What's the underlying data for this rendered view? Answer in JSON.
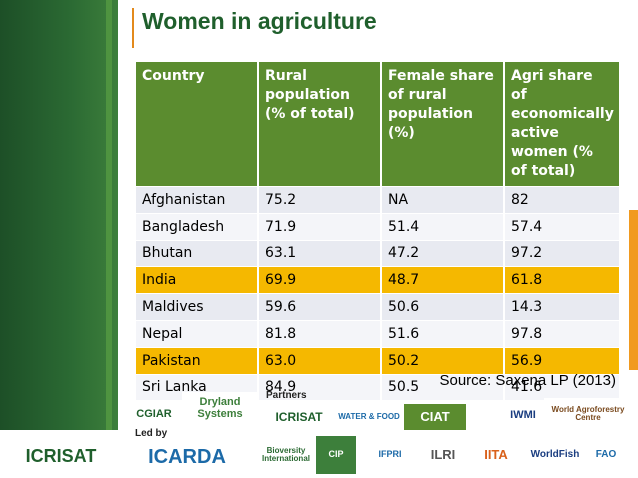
{
  "title": "Women in agriculture",
  "table": {
    "header": [
      "Country",
      "Rural population (% of total)",
      "Female share of rural population (%)",
      "Agri share of economically active women (% of total)"
    ],
    "rows": [
      [
        "Afghanistan",
        "75.2",
        "NA",
        "82"
      ],
      [
        "Bangladesh",
        "71.9",
        "51.4",
        "57.4"
      ],
      [
        "Bhutan",
        "63.1",
        "47.2",
        "97.2"
      ],
      [
        "India",
        "69.9",
        "48.7",
        "61.8"
      ],
      [
        "Maldives",
        "59.6",
        "50.6",
        "14.3"
      ],
      [
        "Nepal",
        "81.8",
        "51.6",
        "97.8"
      ],
      [
        "Pakistan",
        "63.0",
        "50.2",
        "56.9"
      ],
      [
        "Sri Lanka",
        "84.9",
        "50.5",
        "41.6"
      ]
    ],
    "highlight_rows": [
      3,
      6
    ]
  },
  "source": "Source: Saxena LP (2013)",
  "footer": {
    "partners_label": "Partners",
    "led_by_label": "Led by",
    "logos": [
      "CGIAR",
      "Dryland Systems",
      "ICRISAT",
      "ICARDA",
      "ICRISAT",
      "WATER & FOOD",
      "CIAT",
      "IWMI",
      "World Agroforestry Centre",
      "Bioversity International",
      "CIP",
      "IFPRI",
      "ILRI",
      "IITA",
      "WorldFish",
      "FAO"
    ]
  }
}
